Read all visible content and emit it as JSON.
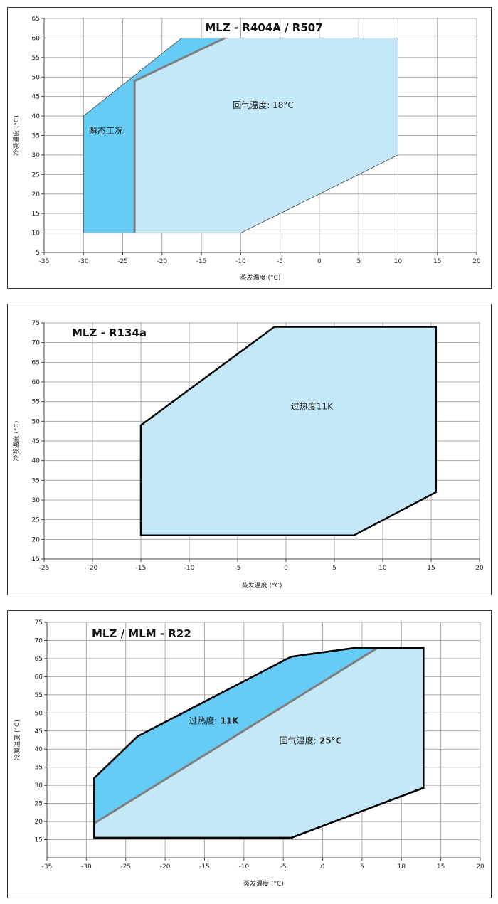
{
  "chart_data": [
    {
      "type": "area",
      "title": "MLZ - R404A / R507",
      "xlabel": "蒸发温度 (°C)",
      "ylabel": "冷凝温度 (°C)",
      "xlim": [
        -35,
        20
      ],
      "ylim": [
        5,
        65
      ],
      "xticks": [
        -35,
        -30,
        -25,
        -20,
        -15,
        -10,
        -5,
        0,
        5,
        10,
        15,
        20
      ],
      "yticks": [
        5,
        10,
        15,
        20,
        25,
        30,
        35,
        40,
        45,
        50,
        55,
        60,
        65
      ],
      "grid": true,
      "regions": [
        {
          "points": [
            [
              -23.5,
              10
            ],
            [
              -23.5,
              49
            ],
            [
              -17.5,
              60
            ],
            [
              10,
              60
            ],
            [
              10,
              30
            ],
            [
              -10,
              10
            ]
          ],
          "fill": "#c5e8f9",
          "stroke": "#444444",
          "stroke_width": 0.8
        },
        {
          "points": [
            [
              -30,
              10
            ],
            [
              -30,
              40
            ],
            [
              -17.5,
              60
            ],
            [
              -12,
              60
            ],
            [
              -23.5,
              49
            ],
            [
              -23.5,
              10
            ]
          ],
          "fill": "#66ccf5",
          "stroke": "#444444",
          "stroke_width": 0.8
        }
      ],
      "lines": [
        {
          "points": [
            [
              -23.5,
              10
            ],
            [
              -23.5,
              49
            ],
            [
              -12,
              60
            ]
          ],
          "color": "#7f7f7f",
          "width": 3
        }
      ],
      "annotations": [
        {
          "text": "回气温度: 18°C",
          "x": -11,
          "y": 42,
          "bold_from": 99
        },
        {
          "text": "瞬态工况",
          "x": -29.3,
          "y": 35.5,
          "bold_from": 99
        }
      ]
    },
    {
      "type": "area",
      "title": "MLZ - R134a",
      "xlabel": "蒸发温度 (°C)",
      "ylabel": "冷凝温度 (°C)",
      "xlim": [
        -25,
        20
      ],
      "ylim": [
        15,
        75
      ],
      "xticks": [
        -25,
        -20,
        -15,
        -10,
        -5,
        0,
        5,
        10,
        15,
        20
      ],
      "yticks": [
        15,
        20,
        25,
        30,
        35,
        40,
        45,
        50,
        55,
        60,
        65,
        70,
        75
      ],
      "grid": true,
      "regions": [
        {
          "points": [
            [
              -15,
              21
            ],
            [
              -15,
              49
            ],
            [
              -1.2,
              74
            ],
            [
              15.5,
              74
            ],
            [
              15.5,
              32
            ],
            [
              7,
              21
            ]
          ],
          "fill": "#c5e8f9",
          "stroke": "#000000",
          "stroke_width": 2.5
        }
      ],
      "lines": [],
      "annotations": [
        {
          "text": "过热度11K",
          "x": 0.5,
          "y": 53,
          "bold_from": 99
        }
      ]
    },
    {
      "type": "area",
      "title": "MLZ / MLM  -  R22",
      "xlabel": "蒸发温度 (°C)",
      "ylabel": "冷凝温度 (°C)",
      "xlim": [
        -35,
        20
      ],
      "ylim": [
        10,
        75
      ],
      "xticks": [
        -35,
        -30,
        -25,
        -20,
        -15,
        -10,
        -5,
        0,
        5,
        10,
        15,
        20
      ],
      "yticks": [
        15,
        20,
        25,
        30,
        35,
        40,
        45,
        50,
        55,
        60,
        65,
        70,
        75
      ],
      "grid": true,
      "regions": [
        {
          "points": [
            [
              -29,
              15.5
            ],
            [
              -29,
              32
            ],
            [
              -23.5,
              43.5
            ],
            [
              -4,
              65.5
            ],
            [
              4.3,
              68
            ],
            [
              12.8,
              68
            ],
            [
              12.8,
              29.3
            ],
            [
              -4,
              15.5
            ]
          ],
          "fill": "#c5e8f9",
          "stroke": "#000000",
          "stroke_width": 2.5
        },
        {
          "points": [
            [
              -29,
              19.5
            ],
            [
              -29,
              32
            ],
            [
              -23.5,
              43.5
            ],
            [
              -4,
              65.5
            ],
            [
              4.3,
              68
            ],
            [
              7,
              68
            ]
          ],
          "fill": "#66ccf5",
          "stroke": "none",
          "stroke_width": 0
        }
      ],
      "lines": [
        {
          "points": [
            [
              -29,
              19.5
            ],
            [
              7,
              68
            ]
          ],
          "color": "#7f7f7f",
          "width": 3
        },
        {
          "points": [
            [
              -29,
              15.5
            ],
            [
              -29,
              32
            ],
            [
              -23.5,
              43.5
            ],
            [
              -4,
              65.5
            ],
            [
              4.3,
              68
            ],
            [
              12.8,
              68
            ],
            [
              12.8,
              29.3
            ],
            [
              -4,
              15.5
            ],
            [
              -29,
              15.5
            ]
          ],
          "color": "#000000",
          "width": 2.5
        }
      ],
      "annotations": [
        {
          "text": "过热度: 11K",
          "x": -17,
          "y": 47,
          "bold_from": 4
        },
        {
          "text": "回气温度: 25°C",
          "x": -5.5,
          "y": 41.5,
          "bold_from": 5
        }
      ]
    }
  ]
}
